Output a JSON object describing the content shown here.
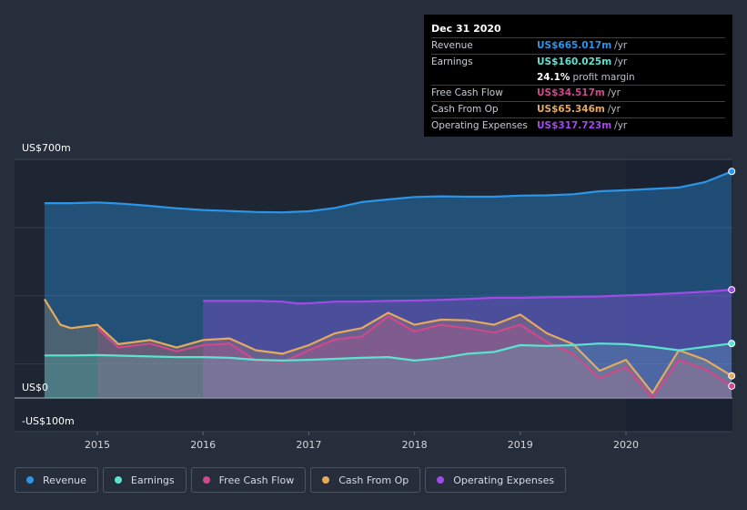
{
  "chart_data": {
    "type": "area",
    "y_label_top": "US$700m",
    "y_label_zero": "US$0",
    "y_label_bottom": "-US$100m",
    "ylim": [
      -100,
      700
    ],
    "x_ticks": [
      "2015",
      "2016",
      "2017",
      "2018",
      "2019",
      "2020"
    ],
    "forecast_start": 2020.0,
    "series": [
      {
        "key": "revenue",
        "name": "Revenue",
        "color": "#2b95e8",
        "fill": true,
        "x": [
          2014.5,
          2014.75,
          2015.0,
          2015.25,
          2015.5,
          2015.75,
          2016.0,
          2016.25,
          2016.5,
          2016.75,
          2017.0,
          2017.25,
          2017.5,
          2017.75,
          2018.0,
          2018.25,
          2018.5,
          2018.75,
          2019.0,
          2019.25,
          2019.5,
          2019.75,
          2020.0,
          2020.25,
          2020.5,
          2020.75,
          2021.0
        ],
        "values": [
          572,
          572,
          574,
          570,
          564,
          557,
          552,
          549,
          546,
          545,
          548,
          558,
          575,
          583,
          590,
          592,
          591,
          591,
          594,
          595,
          598,
          607,
          610,
          614,
          618,
          634,
          665
        ]
      },
      {
        "key": "operating_expenses",
        "name": "Operating Expenses",
        "color": "#a24ae8",
        "fill": true,
        "x": [
          2016.0,
          2016.25,
          2016.5,
          2016.75,
          2016.9,
          2017.0,
          2017.25,
          2017.5,
          2017.75,
          2018.0,
          2018.25,
          2018.5,
          2018.75,
          2019.0,
          2019.25,
          2019.5,
          2019.75,
          2020.0,
          2020.25,
          2020.5,
          2020.75,
          2021.0
        ],
        "values": [
          285,
          285,
          285,
          283,
          277,
          278,
          283,
          283,
          285,
          286,
          288,
          291,
          294,
          294,
          296,
          297,
          298,
          301,
          304,
          308,
          312,
          318
        ]
      },
      {
        "key": "cash_from_op",
        "name": "Cash From Op",
        "color": "#e5a95f",
        "fill": true,
        "x": [
          2014.5,
          2014.65,
          2014.75,
          2015.0,
          2015.2,
          2015.5,
          2015.75,
          2016.0,
          2016.25,
          2016.5,
          2016.75,
          2017.0,
          2017.25,
          2017.5,
          2017.75,
          2018.0,
          2018.25,
          2018.5,
          2018.75,
          2019.0,
          2019.25,
          2019.5,
          2019.75,
          2020.0,
          2020.25,
          2020.5,
          2020.75,
          2021.0
        ],
        "values": [
          290,
          215,
          205,
          215,
          158,
          170,
          148,
          170,
          175,
          140,
          130,
          155,
          190,
          205,
          250,
          215,
          230,
          228,
          215,
          245,
          190,
          158,
          80,
          112,
          15,
          140,
          112,
          65
        ]
      },
      {
        "key": "free_cash_flow",
        "name": "Free Cash Flow",
        "color": "#d0488c",
        "fill": true,
        "x": [
          2015.0,
          2015.2,
          2015.5,
          2015.75,
          2016.0,
          2016.25,
          2016.5,
          2016.75,
          2017.0,
          2017.25,
          2017.5,
          2017.75,
          2018.0,
          2018.25,
          2018.5,
          2018.75,
          2019.0,
          2019.25,
          2019.5,
          2019.75,
          2020.0,
          2020.25,
          2020.5,
          2020.75,
          2021.0
        ],
        "values": [
          205,
          148,
          160,
          137,
          155,
          160,
          110,
          105,
          140,
          172,
          180,
          240,
          195,
          215,
          205,
          192,
          215,
          165,
          130,
          58,
          92,
          0,
          112,
          85,
          35
        ]
      },
      {
        "key": "earnings",
        "name": "Earnings",
        "color": "#5ce3cf",
        "fill": true,
        "x": [
          2014.5,
          2014.75,
          2015.0,
          2015.25,
          2015.5,
          2015.75,
          2016.0,
          2016.25,
          2016.5,
          2016.75,
          2017.0,
          2017.25,
          2017.5,
          2017.75,
          2018.0,
          2018.25,
          2018.5,
          2018.75,
          2019.0,
          2019.25,
          2019.5,
          2019.75,
          2020.0,
          2020.25,
          2020.5,
          2020.75,
          2021.0
        ],
        "values": [
          125,
          125,
          126,
          124,
          122,
          120,
          120,
          118,
          112,
          110,
          112,
          115,
          118,
          120,
          110,
          117,
          130,
          135,
          155,
          153,
          155,
          160,
          158,
          150,
          140,
          150,
          160
        ]
      }
    ]
  },
  "tooltip": {
    "title": "Dec 31 2020",
    "rows": [
      {
        "label": "Revenue",
        "value": "US$665.017m",
        "unit": "/yr",
        "color": "#2b95e8"
      },
      {
        "label": "Earnings",
        "value": "US$160.025m",
        "unit": "/yr",
        "color": "#5ce3cf"
      },
      {
        "label": "",
        "value": "24.1%",
        "unit": "profit margin",
        "color": "#ffffff"
      },
      {
        "label": "Free Cash Flow",
        "value": "US$34.517m",
        "unit": "/yr",
        "color": "#d0488c"
      },
      {
        "label": "Cash From Op",
        "value": "US$65.346m",
        "unit": "/yr",
        "color": "#e5a95f"
      },
      {
        "label": "Operating Expenses",
        "value": "US$317.723m",
        "unit": "/yr",
        "color": "#a24ae8"
      }
    ]
  },
  "legend": [
    {
      "name": "Revenue",
      "color": "#2b95e8"
    },
    {
      "name": "Earnings",
      "color": "#5ce3cf"
    },
    {
      "name": "Free Cash Flow",
      "color": "#d0488c"
    },
    {
      "name": "Cash From Op",
      "color": "#e5a95f"
    },
    {
      "name": "Operating Expenses",
      "color": "#a24ae8"
    }
  ]
}
